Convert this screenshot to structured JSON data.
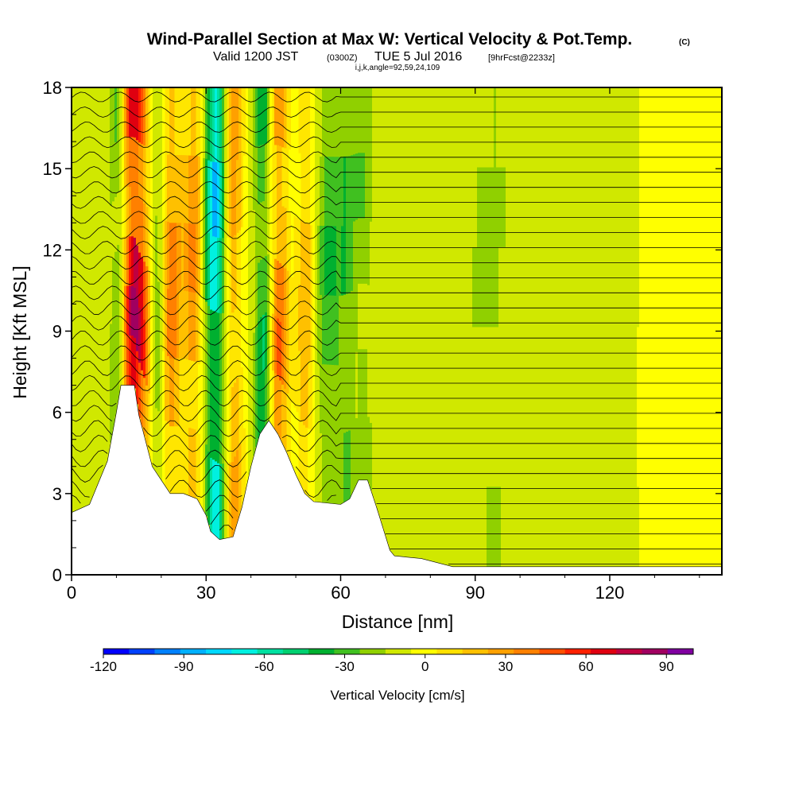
{
  "chart_data": {
    "type": "heatmap",
    "title": "Wind-Parallel Section at Max W: Vertical Velocity & Pot.Temp.",
    "title_mark": "(C)",
    "subtitle_main": "Valid 1200 JST",
    "subtitle_z": "(0300Z)",
    "subtitle_date": "TUE 5 Jul 2016",
    "subtitle_fcst": "[9hrFcst@2233z]",
    "subtitle2": "i,j,k,angle=92,59,24,109",
    "xlabel": "Distance [nm]",
    "ylabel": "Height [Kft MSL]",
    "xlim": [
      0,
      145
    ],
    "ylim": [
      0,
      18
    ],
    "x_ticks": [
      0,
      30,
      60,
      90,
      120
    ],
    "y_ticks": [
      0,
      3,
      6,
      9,
      12,
      15,
      18
    ],
    "colorbar": {
      "label": "Vertical Velocity [cm/s]",
      "range": [
        -120,
        100
      ],
      "step": 10,
      "tick_values": [
        -120,
        -90,
        -60,
        -30,
        0,
        30,
        60,
        90
      ],
      "colors": [
        "#0000ff",
        "#0040ff",
        "#0080ff",
        "#00b0ff",
        "#00d8ff",
        "#00f0e0",
        "#00e0a0",
        "#00d070",
        "#00b030",
        "#40c020",
        "#90d000",
        "#d0e800",
        "#ffff00",
        "#ffe000",
        "#ffc000",
        "#ffa000",
        "#ff8000",
        "#ff5000",
        "#ff2000",
        "#e00010",
        "#c00040",
        "#a00060",
        "#8000a0"
      ]
    },
    "terrain_kft": [
      [
        0,
        2.3
      ],
      [
        4,
        2.6
      ],
      [
        6,
        3.4
      ],
      [
        8,
        4.2
      ],
      [
        10,
        6.0
      ],
      [
        11,
        7.0
      ],
      [
        14,
        7.0
      ],
      [
        15,
        5.9
      ],
      [
        18,
        4.0
      ],
      [
        20,
        3.5
      ],
      [
        22,
        3.0
      ],
      [
        25,
        3.0
      ],
      [
        28,
        2.8
      ],
      [
        30,
        2.2
      ],
      [
        31,
        1.6
      ],
      [
        33,
        1.3
      ],
      [
        36,
        1.4
      ],
      [
        38,
        2.5
      ],
      [
        40,
        4.0
      ],
      [
        42,
        5.2
      ],
      [
        44,
        5.7
      ],
      [
        46,
        5.2
      ],
      [
        48,
        4.5
      ],
      [
        50,
        3.7
      ],
      [
        52,
        3.0
      ],
      [
        54,
        2.7
      ],
      [
        60,
        2.6
      ],
      [
        62,
        2.8
      ],
      [
        64,
        3.5
      ],
      [
        66,
        3.5
      ],
      [
        68,
        2.5
      ],
      [
        71,
        0.9
      ],
      [
        72,
        0.7
      ],
      [
        78,
        0.6
      ],
      [
        85,
        0.3
      ],
      [
        145,
        0.3
      ]
    ],
    "theta_levels": 33,
    "vertical_velocity_cores": [
      {
        "x": 13,
        "w": 95
      },
      {
        "x": 16,
        "w": 60
      },
      {
        "x": 22,
        "w": 55
      },
      {
        "x": 27,
        "w": 45
      },
      {
        "x": 36,
        "w": 40
      },
      {
        "x": 46,
        "w": 60
      },
      {
        "x": 52,
        "w": 30
      },
      {
        "x": 11,
        "w": -45
      },
      {
        "x": 19,
        "w": -35
      },
      {
        "x": 32,
        "w": -85
      },
      {
        "x": 43,
        "w": -50
      },
      {
        "x": 57,
        "w": -35
      },
      {
        "x": 61,
        "w": -30
      },
      {
        "x": 65,
        "w": -20
      },
      {
        "x": 93,
        "w": -15
      }
    ]
  }
}
